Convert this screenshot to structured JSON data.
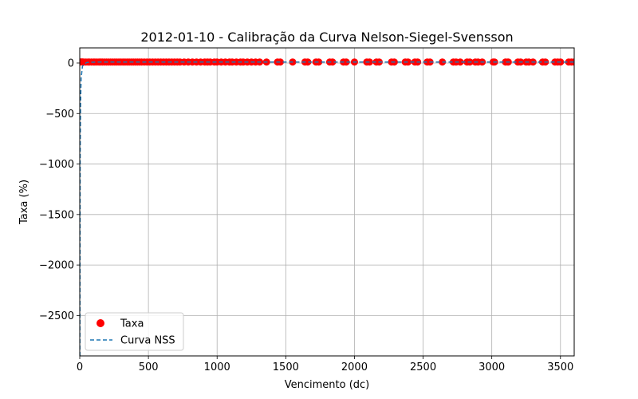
{
  "chart_data": {
    "type": "scatter",
    "title": "2012-01-10 - Calibração da Curva Nelson-Siegel-Svensson",
    "xlabel": "Vencimento (dc)",
    "ylabel": "Taxa (%)",
    "xlim": [
      0,
      3600
    ],
    "ylim": [
      -2900,
      150
    ],
    "xticks": [
      0,
      500,
      1000,
      1500,
      2000,
      2500,
      3000,
      3500
    ],
    "xtick_labels": [
      "0",
      "500",
      "1000",
      "1500",
      "2000",
      "2500",
      "3000",
      "3500"
    ],
    "yticks": [
      0,
      -500,
      -1000,
      -1500,
      -2000,
      -2500
    ],
    "ytick_labels": [
      "0",
      "−500",
      "−1000",
      "−1500",
      "−2000",
      "−2500"
    ],
    "grid": true,
    "legend": {
      "position": "lower-left",
      "entries": [
        "Taxa",
        "Curva NSS"
      ]
    },
    "series": [
      {
        "name": "Taxa",
        "kind": "scatter",
        "color": "#ff0000",
        "x": [
          10,
          20,
          30,
          45,
          60,
          70,
          85,
          100,
          110,
          125,
          140,
          150,
          165,
          180,
          195,
          210,
          225,
          240,
          255,
          270,
          285,
          300,
          315,
          330,
          345,
          360,
          375,
          390,
          405,
          420,
          435,
          450,
          470,
          490,
          510,
          530,
          550,
          570,
          590,
          610,
          630,
          650,
          670,
          690,
          710,
          730,
          760,
          790,
          820,
          850,
          880,
          910,
          930,
          950,
          980,
          1000,
          1030,
          1060,
          1090,
          1110,
          1140,
          1170,
          1190,
          1220,
          1250,
          1280,
          1310,
          1360,
          1440,
          1460,
          1550,
          1640,
          1660,
          1720,
          1740,
          1820,
          1840,
          1920,
          1940,
          2000,
          2090,
          2110,
          2160,
          2180,
          2270,
          2290,
          2370,
          2390,
          2440,
          2460,
          2530,
          2550,
          2640,
          2720,
          2740,
          2770,
          2820,
          2840,
          2880,
          2900,
          2930,
          3010,
          3020,
          3100,
          3120,
          3190,
          3210,
          3250,
          3270,
          3300,
          3370,
          3390,
          3460,
          3480,
          3500,
          3560,
          3580,
          3600
        ],
        "y": [
          11,
          11,
          10,
          10,
          10,
          10,
          10,
          10,
          10,
          10,
          10,
          10,
          10,
          10,
          10,
          10,
          10,
          10,
          10,
          10,
          10,
          10,
          10,
          10,
          10,
          10,
          10,
          10,
          10,
          10,
          10,
          10,
          10,
          10,
          10,
          10,
          10,
          10,
          10,
          10,
          10,
          10,
          10,
          10,
          10,
          10,
          10,
          10,
          10,
          10,
          10,
          10,
          10,
          10,
          10,
          10,
          10,
          10,
          10,
          10,
          10,
          10,
          10,
          10,
          10,
          10,
          10,
          10,
          10,
          10,
          10,
          10,
          10,
          10,
          10,
          10,
          10,
          10,
          10,
          10,
          10,
          10,
          10,
          10,
          10,
          10,
          10,
          10,
          10,
          10,
          10,
          10,
          10,
          10,
          10,
          10,
          10,
          10,
          10,
          10,
          10,
          10,
          10,
          10,
          10,
          10,
          10,
          10,
          10,
          10,
          10,
          10,
          10,
          10,
          10,
          10,
          10,
          10
        ]
      },
      {
        "name": "Curva NSS",
        "kind": "line",
        "style": "dashed",
        "color": "#1f77b4",
        "x": [
          1,
          3,
          6,
          10,
          20,
          50,
          100,
          200,
          400,
          800,
          1200,
          1600,
          2000,
          2400,
          2800,
          3200,
          3600
        ],
        "y": [
          -2900,
          -900,
          -400,
          -150,
          -30,
          5,
          9,
          10,
          10,
          10,
          10,
          10,
          10,
          10,
          10,
          10,
          10
        ]
      }
    ]
  }
}
